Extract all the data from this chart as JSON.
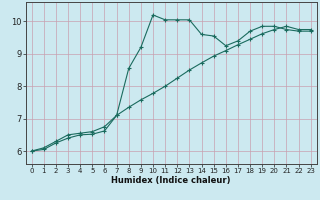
{
  "title": "",
  "xlabel": "Humidex (Indice chaleur)",
  "ylabel": "",
  "background_color": "#cce9f0",
  "line_color": "#1a6b5e",
  "grid_color": "#c8a0b0",
  "xlim": [
    -0.5,
    23.5
  ],
  "ylim": [
    5.6,
    10.6
  ],
  "xticks": [
    0,
    1,
    2,
    3,
    4,
    5,
    6,
    7,
    8,
    9,
    10,
    11,
    12,
    13,
    14,
    15,
    16,
    17,
    18,
    19,
    20,
    21,
    22,
    23
  ],
  "yticks": [
    6,
    7,
    8,
    9,
    10
  ],
  "line1_x": [
    0,
    1,
    2,
    3,
    4,
    5,
    6,
    7,
    8,
    9,
    10,
    11,
    12,
    13,
    14,
    15,
    16,
    17,
    18,
    19,
    20,
    21,
    22,
    23
  ],
  "line1_y": [
    6.0,
    6.05,
    6.25,
    6.4,
    6.5,
    6.52,
    6.62,
    7.1,
    8.55,
    9.2,
    10.2,
    10.05,
    10.05,
    10.05,
    9.6,
    9.55,
    9.25,
    9.4,
    9.7,
    9.85,
    9.85,
    9.75,
    9.7,
    9.7
  ],
  "line2_x": [
    0,
    1,
    2,
    3,
    4,
    5,
    6,
    7,
    8,
    9,
    10,
    11,
    12,
    13,
    14,
    15,
    16,
    17,
    18,
    19,
    20,
    21,
    22,
    23
  ],
  "line2_y": [
    6.0,
    6.1,
    6.3,
    6.5,
    6.55,
    6.6,
    6.75,
    7.1,
    7.35,
    7.58,
    7.78,
    8.0,
    8.25,
    8.5,
    8.72,
    8.93,
    9.1,
    9.28,
    9.45,
    9.62,
    9.75,
    9.85,
    9.75,
    9.75
  ]
}
